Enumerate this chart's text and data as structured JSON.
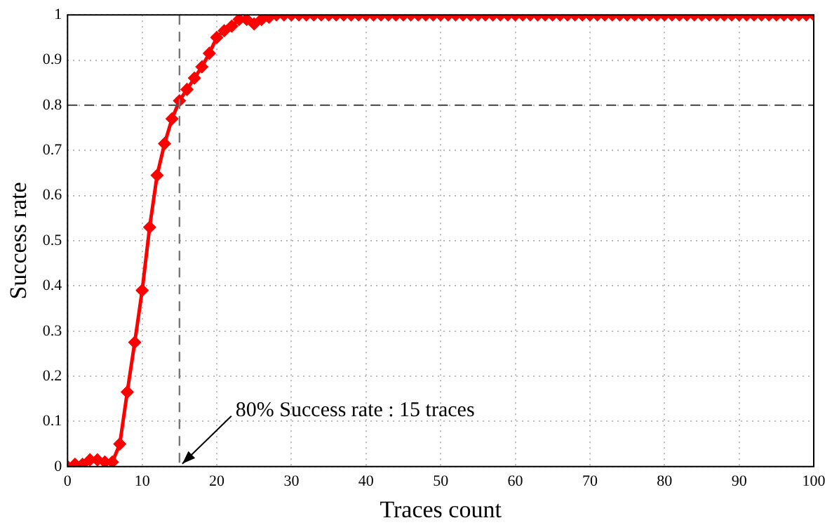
{
  "chart_data": {
    "type": "line",
    "xlabel": "Traces count",
    "ylabel": "Success rate",
    "x": [
      0,
      1,
      2,
      3,
      4,
      5,
      6,
      7,
      8,
      9,
      10,
      11,
      12,
      13,
      14,
      15,
      16,
      17,
      18,
      19,
      20,
      21,
      22,
      23,
      24,
      25,
      26,
      27,
      28,
      29,
      30,
      31,
      32,
      33,
      34,
      35,
      36,
      37,
      38,
      39,
      40,
      41,
      42,
      43,
      44,
      45,
      46,
      47,
      48,
      49,
      50,
      51,
      52,
      53,
      54,
      55,
      56,
      57,
      58,
      59,
      60,
      61,
      62,
      63,
      64,
      65,
      66,
      67,
      68,
      69,
      70,
      71,
      72,
      73,
      74,
      75,
      76,
      77,
      78,
      79,
      80,
      81,
      82,
      83,
      84,
      85,
      86,
      87,
      88,
      89,
      90,
      91,
      92,
      93,
      94,
      95,
      96,
      97,
      98,
      99,
      100
    ],
    "series": [
      {
        "color": "#ff0000",
        "values": [
          0,
          0.005,
          0.005,
          0.015,
          0.015,
          0.01,
          0.01,
          0.05,
          0.165,
          0.275,
          0.39,
          0.53,
          0.645,
          0.715,
          0.77,
          0.81,
          0.835,
          0.86,
          0.885,
          0.915,
          0.95,
          0.965,
          0.975,
          0.99,
          0.99,
          0.98,
          0.99,
          0.995,
          1,
          1,
          1,
          1,
          1,
          1,
          1,
          1,
          1,
          1,
          1,
          1,
          1,
          1,
          1,
          1,
          1,
          1,
          1,
          1,
          1,
          1,
          1,
          1,
          1,
          1,
          1,
          1,
          1,
          1,
          1,
          1,
          1,
          1,
          1,
          1,
          1,
          1,
          1,
          1,
          1,
          1,
          1,
          1,
          1,
          1,
          1,
          1,
          1,
          1,
          1,
          1,
          1,
          1,
          1,
          1,
          1,
          1,
          1,
          1,
          1,
          1,
          1,
          1,
          1,
          1,
          1,
          1,
          1,
          1,
          1,
          1,
          1
        ]
      }
    ],
    "xlim": [
      0,
      100
    ],
    "xticks": [
      0,
      10,
      20,
      30,
      40,
      50,
      60,
      70,
      80,
      90,
      100
    ],
    "ylim": [
      0,
      1
    ],
    "yticks": [
      0,
      0.1,
      0.2,
      0.3,
      0.4,
      0.5,
      0.6,
      0.7,
      0.8,
      0.9,
      1
    ],
    "ref_lines": [
      {
        "axis": "y",
        "value": 0.8,
        "color": "#555555",
        "line_style": "dashed"
      },
      {
        "axis": "x",
        "value": 15,
        "color": "#777777",
        "line_style": "dashed"
      }
    ],
    "annotations": [
      {
        "text": "80% Success rate : 15 traces",
        "x": 15,
        "y": 0
      }
    ],
    "grid": true,
    "legend": false,
    "marker": "diamond",
    "line_style": "solid"
  }
}
